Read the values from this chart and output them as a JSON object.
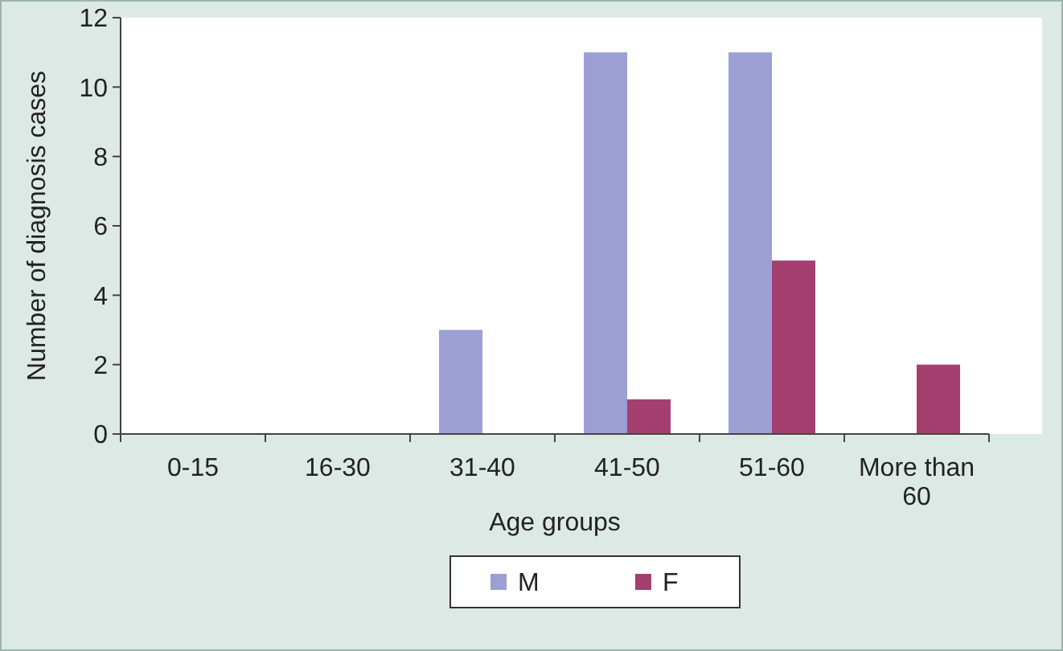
{
  "chart_data": {
    "type": "bar",
    "xlabel": "Age groups",
    "ylabel": "Number of diagnosis cases",
    "categories": [
      "0-15",
      "16-30",
      "31-40",
      "41-50",
      "51-60",
      "More than 60"
    ],
    "series": [
      {
        "name": "M",
        "color": "#9c9fd4",
        "values": [
          0,
          0,
          3,
          11,
          11,
          0
        ]
      },
      {
        "name": "F",
        "color": "#a3406f",
        "values": [
          0,
          0,
          0,
          1,
          5,
          2
        ]
      }
    ],
    "ylim": [
      0,
      12
    ],
    "yticks": [
      0,
      2,
      4,
      6,
      8,
      10,
      12
    ],
    "grid": false,
    "legend": "bottom"
  }
}
